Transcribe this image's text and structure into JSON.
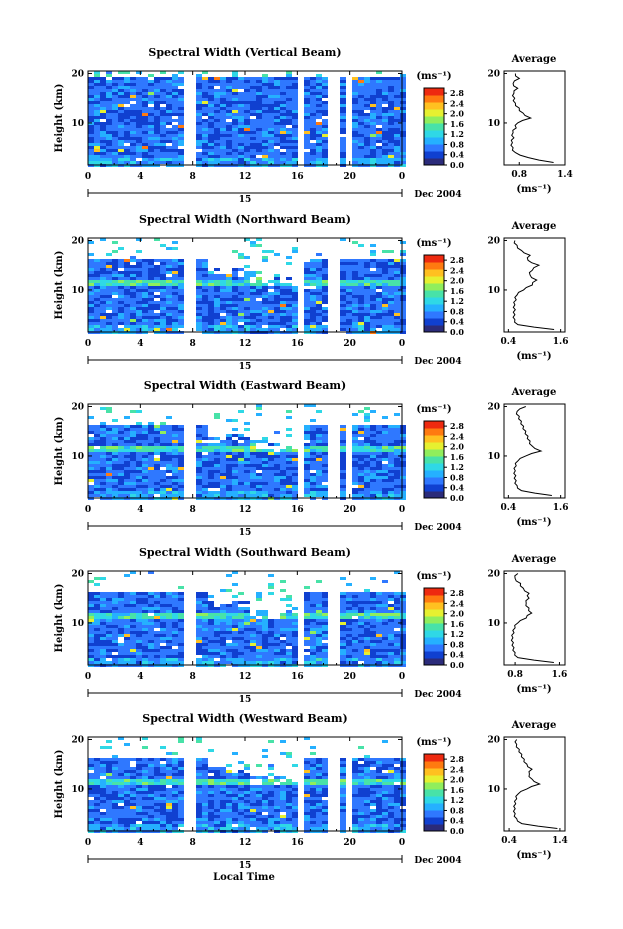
{
  "x_axis_label": "Local Time",
  "date_label": "Dec 2004",
  "day_label": "15",
  "average_title": "Average",
  "colorbar_unit": "(ms⁻¹)",
  "colorbar_ticks": [
    "2.8",
    "2.4",
    "2.0",
    "1.6",
    "1.2",
    "0.8",
    "0.4",
    "0.0"
  ],
  "colormap": [
    "#2b2b7a",
    "#1040d0",
    "#2f78ff",
    "#25b0ff",
    "#2fd8e6",
    "#48e2a8",
    "#90ee5c",
    "#e6f030",
    "#ffc020",
    "#ff7a10",
    "#ee2a10"
  ],
  "chart_data": [
    {
      "type": "heatmap",
      "title": "Spectral Width (Vertical Beam)",
      "ylabel": "Height (km)",
      "xticks": [
        "0",
        "4",
        "8",
        "12",
        "16",
        "20",
        "0"
      ],
      "yticks": [
        "20",
        "10"
      ],
      "xlim": [
        0,
        24
      ],
      "ylim": [
        1.5,
        20.5
      ],
      "colorbar_range": [
        0.0,
        3.0
      ],
      "gaps_hours": [
        [
          7.2,
          7.8
        ],
        [
          16.0,
          16.5
        ],
        [
          18.3,
          19.0
        ],
        [
          19.7,
          20.0
        ]
      ],
      "average": {
        "xlabel": "(ms⁻¹)",
        "xticks": [
          "0.8",
          "1.4"
        ],
        "yticks": [
          "20",
          "10"
        ],
        "xlim": [
          0.6,
          1.4
        ],
        "height_km": [
          2,
          3,
          4,
          5,
          6,
          7,
          8,
          9,
          10,
          11,
          12,
          13,
          14,
          15,
          16,
          17,
          18,
          19,
          20
        ],
        "values": [
          1.25,
          0.92,
          0.75,
          0.72,
          0.71,
          0.73,
          0.72,
          0.76,
          0.78,
          0.95,
          0.85,
          0.8,
          0.75,
          0.74,
          0.73,
          0.78,
          0.72,
          0.8,
          0.75
        ]
      }
    },
    {
      "type": "heatmap",
      "title": "Spectral Width (Northward Beam)",
      "ylabel": "Height (km)",
      "xticks": [
        "0",
        "4",
        "8",
        "12",
        "16",
        "20",
        "0"
      ],
      "yticks": [
        "20",
        "10"
      ],
      "xlim": [
        0,
        24
      ],
      "ylim": [
        1.5,
        20.5
      ],
      "colorbar_range": [
        0.0,
        3.0
      ],
      "gaps_hours": [
        [
          7.2,
          7.8
        ],
        [
          16.0,
          16.5
        ],
        [
          18.3,
          19.0
        ]
      ],
      "average": {
        "xlabel": "(ms⁻¹)",
        "xticks": [
          "0.4",
          "1.6"
        ],
        "yticks": [
          "20",
          "10"
        ],
        "xlim": [
          0.3,
          1.7
        ],
        "height_km": [
          2,
          3,
          4,
          5,
          6,
          7,
          8,
          9,
          10,
          11,
          12,
          13,
          14,
          15,
          16,
          17,
          18,
          19,
          20
        ],
        "values": [
          1.45,
          0.62,
          0.55,
          0.55,
          0.56,
          0.55,
          0.58,
          0.6,
          0.75,
          0.95,
          1.05,
          0.9,
          0.95,
          1.1,
          0.85,
          0.9,
          0.7,
          0.6,
          0.55
        ]
      }
    },
    {
      "type": "heatmap",
      "title": "Spectral Width (Eastward Beam)",
      "ylabel": "Height (km)",
      "xticks": [
        "0",
        "4",
        "8",
        "12",
        "16",
        "20",
        "0"
      ],
      "yticks": [
        "20",
        "10"
      ],
      "xlim": [
        0,
        24
      ],
      "ylim": [
        1.5,
        20.5
      ],
      "colorbar_range": [
        0.0,
        3.0
      ],
      "gaps_hours": [
        [
          7.2,
          7.8
        ],
        [
          16.0,
          16.5
        ],
        [
          18.3,
          19.0
        ],
        [
          19.7,
          20.0
        ]
      ],
      "average": {
        "xlabel": "(ms⁻¹)",
        "xticks": [
          "0.4",
          "1.6"
        ],
        "yticks": [
          "20",
          "10"
        ],
        "xlim": [
          0.3,
          1.7
        ],
        "height_km": [
          2,
          3,
          4,
          5,
          6,
          7,
          8,
          9,
          10,
          11,
          12,
          13,
          14,
          15,
          16,
          17,
          18,
          19,
          20
        ],
        "values": [
          1.4,
          0.7,
          0.6,
          0.58,
          0.57,
          0.56,
          0.58,
          0.62,
          0.8,
          1.15,
          0.95,
          0.9,
          0.85,
          0.8,
          0.75,
          0.7,
          0.65,
          0.6,
          0.8
        ]
      }
    },
    {
      "type": "heatmap",
      "title": "Spectral Width (Southward Beam)",
      "ylabel": "Height (km)",
      "xticks": [
        "0",
        "4",
        "8",
        "12",
        "16",
        "20",
        "0"
      ],
      "yticks": [
        "20",
        "10"
      ],
      "xlim": [
        0,
        24
      ],
      "ylim": [
        1.5,
        20.5
      ],
      "colorbar_range": [
        0.0,
        3.0
      ],
      "gaps_hours": [
        [
          7.2,
          7.8
        ],
        [
          16.0,
          16.5
        ],
        [
          18.3,
          19.0
        ]
      ],
      "average": {
        "xlabel": "(ms⁻¹)",
        "xticks": [
          "0.8",
          "1.6"
        ],
        "yticks": [
          "20",
          "10"
        ],
        "xlim": [
          0.6,
          1.7
        ],
        "height_km": [
          2,
          3,
          4,
          5,
          6,
          7,
          8,
          9,
          10,
          11,
          12,
          13,
          14,
          15,
          16,
          17,
          18,
          19,
          20
        ],
        "values": [
          1.5,
          0.85,
          0.8,
          0.78,
          0.77,
          0.76,
          0.78,
          0.8,
          0.85,
          1.0,
          1.1,
          1.05,
          1.0,
          1.05,
          1.05,
          0.95,
          0.9,
          0.8,
          0.85
        ]
      }
    },
    {
      "type": "heatmap",
      "title": "Spectral Width (Westward Beam)",
      "ylabel": "Height (km)",
      "xticks": [
        "0",
        "4",
        "8",
        "12",
        "16",
        "20",
        "0"
      ],
      "yticks": [
        "20",
        "10"
      ],
      "xlim": [
        0,
        24
      ],
      "ylim": [
        1.5,
        20.5
      ],
      "colorbar_range": [
        0.0,
        3.0
      ],
      "gaps_hours": [
        [
          7.2,
          7.8
        ],
        [
          16.0,
          16.5
        ],
        [
          18.3,
          19.0
        ],
        [
          19.7,
          20.0
        ]
      ],
      "average": {
        "xlabel": "(ms⁻¹)",
        "xticks": [
          "0.4",
          "1.4"
        ],
        "yticks": [
          "20",
          "10"
        ],
        "xlim": [
          0.3,
          1.5
        ],
        "height_km": [
          2,
          3,
          4,
          5,
          6,
          7,
          8,
          9,
          10,
          11,
          12,
          13,
          14,
          15,
          16,
          17,
          18,
          19,
          20
        ],
        "values": [
          1.35,
          0.65,
          0.55,
          0.52,
          0.52,
          0.53,
          0.55,
          0.58,
          0.75,
          1.0,
          0.85,
          0.8,
          0.85,
          0.75,
          0.7,
          0.65,
          0.6,
          0.55,
          0.55
        ]
      }
    }
  ]
}
